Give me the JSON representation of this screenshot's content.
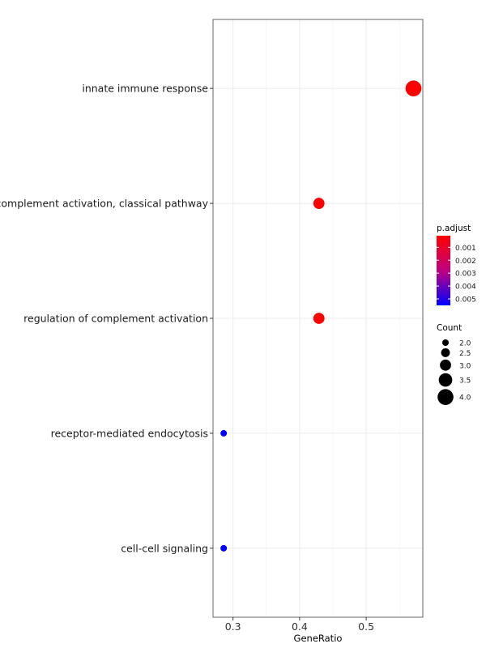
{
  "chart_data": {
    "type": "scatter",
    "title": "",
    "xlabel": "GeneRatio",
    "ylabel": "",
    "xlim": [
      0.27,
      0.585
    ],
    "x_ticks": [
      0.3,
      0.4,
      0.5
    ],
    "x_tick_labels": [
      "0.3",
      "0.4",
      "0.5"
    ],
    "grid": true,
    "categories": [
      "innate immune response",
      "complement activation, classical pathway",
      "regulation of complement activation",
      "receptor-mediated endocytosis",
      "cell-cell signaling"
    ],
    "points": [
      {
        "term": "innate immune response",
        "gene_ratio": 0.571,
        "count": 4,
        "p_adjust": 0.0001
      },
      {
        "term": "complement activation, classical pathway",
        "gene_ratio": 0.429,
        "count": 3,
        "p_adjust": 0.0001
      },
      {
        "term": "regulation of complement activation",
        "gene_ratio": 0.429,
        "count": 3,
        "p_adjust": 0.0001
      },
      {
        "term": "receptor-mediated endocytosis",
        "gene_ratio": 0.286,
        "count": 2,
        "p_adjust": 0.0055
      },
      {
        "term": "cell-cell signaling",
        "gene_ratio": 0.286,
        "count": 2,
        "p_adjust": 0.0055
      }
    ],
    "color_legend": {
      "title": "p.adjust",
      "ticks": [
        0.001,
        0.002,
        0.003,
        0.004,
        0.005
      ],
      "tick_labels": [
        "0.001",
        "0.002",
        "0.003",
        "0.004",
        "0.005"
      ],
      "range": [
        0.0001,
        0.0055
      ],
      "low_color": "#ff0000",
      "high_color": "#0000ff"
    },
    "size_legend": {
      "title": "Count",
      "values": [
        2.0,
        2.5,
        3.0,
        3.5,
        4.0
      ],
      "labels": [
        "2.0",
        "2.5",
        "3.0",
        "3.5",
        "4.0"
      ]
    },
    "legend_position": "right"
  }
}
